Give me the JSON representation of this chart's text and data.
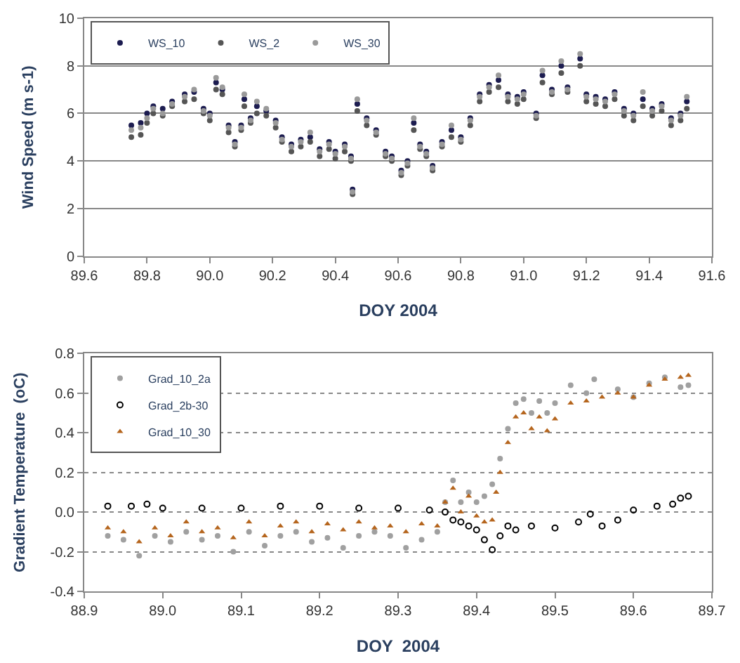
{
  "chart_data": [
    {
      "type": "scatter",
      "xlabel": "DOY 2004",
      "ylabel": "Wind Speed (m s-1)",
      "xlim": [
        89.6,
        91.6
      ],
      "xticks": [
        89.6,
        89.8,
        {
          "value": 90,
          "label": "90.0"
        },
        90.2,
        90.4,
        90.6,
        90.8,
        {
          "value": 91,
          "label": "91.0"
        },
        91.2,
        91.4,
        91.6
      ],
      "ylim": [
        0,
        10
      ],
      "yticks": [
        0,
        2,
        4,
        6,
        8,
        10
      ],
      "grid": "y",
      "legend": "top left",
      "marker": "circle",
      "x": [
        89.75,
        89.78,
        89.8,
        89.82,
        89.85,
        89.88,
        89.92,
        89.95,
        89.98,
        90.0,
        90.02,
        90.04,
        90.06,
        90.08,
        90.1,
        90.11,
        90.13,
        90.15,
        90.18,
        90.21,
        90.23,
        90.26,
        90.29,
        90.32,
        90.35,
        90.38,
        90.4,
        90.43,
        90.45,
        90.455,
        90.47,
        90.5,
        90.53,
        90.56,
        90.58,
        90.61,
        90.63,
        90.65,
        90.67,
        90.69,
        90.71,
        90.74,
        90.77,
        90.8,
        90.83,
        90.86,
        90.89,
        90.92,
        90.95,
        90.98,
        91.0,
        91.04,
        91.06,
        91.09,
        91.12,
        91.14,
        91.18,
        91.2,
        91.23,
        91.26,
        91.29,
        91.32,
        91.35,
        91.38,
        91.41,
        91.44,
        91.47,
        91.5,
        91.52
      ],
      "series": [
        {
          "name": "WS_10",
          "color": "#1c1c50",
          "values": [
            5.5,
            5.6,
            6.0,
            6.3,
            6.2,
            6.5,
            6.8,
            6.9,
            6.2,
            6.0,
            7.3,
            7.0,
            5.5,
            4.8,
            5.5,
            6.6,
            5.8,
            6.3,
            6.1,
            5.7,
            5.0,
            4.7,
            4.9,
            5.0,
            4.5,
            4.8,
            4.4,
            4.7,
            4.2,
            2.8,
            6.4,
            5.8,
            5.3,
            4.4,
            4.2,
            3.6,
            4.0,
            5.6,
            4.7,
            4.4,
            3.8,
            4.8,
            5.3,
            5.0,
            5.8,
            6.8,
            7.2,
            7.4,
            6.8,
            6.7,
            6.9,
            6.0,
            7.6,
            7.0,
            8.0,
            7.1,
            8.3,
            6.8,
            6.7,
            6.6,
            6.9,
            6.2,
            6.0,
            6.6,
            6.2,
            6.4,
            5.8,
            6.0,
            6.5
          ]
        },
        {
          "name": "WS_2",
          "color": "#555555",
          "values": [
            5.0,
            5.1,
            5.6,
            6.0,
            5.9,
            6.3,
            6.5,
            6.6,
            6.0,
            5.7,
            7.0,
            6.8,
            5.2,
            4.6,
            5.3,
            6.3,
            5.6,
            6.0,
            5.9,
            5.4,
            4.8,
            4.4,
            4.6,
            4.8,
            4.2,
            4.5,
            4.1,
            4.4,
            4.0,
            2.6,
            6.1,
            5.5,
            5.1,
            4.2,
            4.0,
            3.4,
            3.8,
            5.3,
            4.5,
            4.2,
            3.6,
            4.6,
            5.0,
            4.8,
            5.5,
            6.5,
            6.9,
            7.1,
            6.5,
            6.4,
            6.6,
            5.8,
            7.3,
            6.8,
            7.7,
            6.9,
            8.0,
            6.5,
            6.4,
            6.3,
            6.6,
            5.9,
            5.7,
            6.3,
            5.9,
            6.1,
            5.5,
            5.7,
            6.2
          ]
        },
        {
          "name": "WS_30",
          "color": "#9a9a9a",
          "values": [
            5.3,
            5.4,
            5.8,
            6.2,
            6.0,
            6.4,
            6.7,
            7.0,
            6.1,
            5.9,
            7.5,
            7.1,
            5.4,
            4.7,
            5.4,
            6.8,
            5.7,
            6.5,
            6.2,
            5.6,
            4.9,
            4.6,
            4.8,
            5.2,
            4.4,
            4.7,
            4.3,
            4.6,
            4.1,
            2.7,
            6.6,
            5.7,
            5.2,
            4.3,
            4.1,
            3.5,
            3.9,
            5.8,
            4.6,
            4.3,
            3.7,
            4.7,
            5.5,
            4.9,
            5.7,
            6.7,
            7.1,
            7.6,
            6.7,
            6.6,
            6.8,
            5.9,
            7.8,
            6.9,
            8.2,
            7.0,
            8.5,
            6.7,
            6.6,
            6.5,
            6.8,
            6.1,
            5.9,
            6.9,
            6.1,
            6.3,
            5.7,
            5.9,
            6.7
          ]
        }
      ]
    },
    {
      "type": "scatter",
      "xlabel": "DOY  2004",
      "ylabel": "Gradient Temperature  (oC)",
      "xlim": [
        88.9,
        89.7
      ],
      "xticks": [
        88.9,
        {
          "value": 89,
          "label": "89.0"
        },
        89.1,
        89.2,
        89.3,
        89.4,
        89.5,
        89.6,
        89.7
      ],
      "ylim": [
        -0.4,
        0.8
      ],
      "yticks": [
        -0.4,
        -0.2,
        {
          "value": 0,
          "label": "0.0"
        },
        0.2,
        0.4,
        0.6,
        0.8
      ],
      "grid": "y",
      "legend": "top left",
      "series": [
        {
          "name": "Grad_10_2a",
          "color": "#a0a0a0",
          "marker": "circle",
          "x": [
            88.93,
            88.95,
            88.97,
            88.99,
            89.01,
            89.03,
            89.05,
            89.07,
            89.09,
            89.11,
            89.13,
            89.15,
            89.17,
            89.19,
            89.21,
            89.23,
            89.25,
            89.27,
            89.29,
            89.31,
            89.33,
            89.35,
            89.36,
            89.37,
            89.38,
            89.39,
            89.4,
            89.41,
            89.42,
            89.43,
            89.44,
            89.45,
            89.46,
            89.47,
            89.48,
            89.49,
            89.5,
            89.52,
            89.54,
            89.55,
            89.58,
            89.6,
            89.62,
            89.64,
            89.66,
            89.67
          ],
          "values": [
            -0.12,
            -0.14,
            -0.22,
            -0.12,
            -0.15,
            -0.1,
            -0.14,
            -0.12,
            -0.2,
            -0.1,
            -0.17,
            -0.12,
            -0.1,
            -0.15,
            -0.13,
            -0.18,
            -0.12,
            -0.1,
            -0.12,
            -0.18,
            -0.14,
            -0.1,
            0.05,
            0.16,
            0.05,
            0.1,
            0.05,
            0.08,
            0.14,
            0.27,
            0.42,
            0.55,
            0.57,
            0.5,
            0.56,
            0.5,
            0.55,
            0.64,
            0.6,
            0.67,
            0.62,
            0.58,
            0.65,
            0.68,
            0.63,
            0.64
          ]
        },
        {
          "name": "Grad_2b-30",
          "color": "#000000",
          "marker": "circle-open",
          "x": [
            88.93,
            88.96,
            88.98,
            89.0,
            89.05,
            89.1,
            89.15,
            89.2,
            89.25,
            89.3,
            89.34,
            89.36,
            89.37,
            89.38,
            89.39,
            89.4,
            89.41,
            89.42,
            89.43,
            89.44,
            89.45,
            89.47,
            89.5,
            89.53,
            89.545,
            89.56,
            89.58,
            89.6,
            89.63,
            89.65,
            89.66,
            89.67
          ],
          "values": [
            0.03,
            0.03,
            0.04,
            0.02,
            0.02,
            0.02,
            0.03,
            0.03,
            0.02,
            0.02,
            0.01,
            0.0,
            -0.04,
            -0.05,
            -0.07,
            -0.09,
            -0.14,
            -0.19,
            -0.12,
            -0.07,
            -0.09,
            -0.07,
            -0.08,
            -0.05,
            -0.01,
            -0.07,
            -0.04,
            0.01,
            0.03,
            0.04,
            0.07,
            0.08
          ]
        },
        {
          "name": "Grad_10_30",
          "color": "#b5651d",
          "marker": "triangle",
          "x": [
            88.93,
            88.95,
            88.97,
            88.99,
            89.01,
            89.03,
            89.05,
            89.07,
            89.09,
            89.11,
            89.13,
            89.15,
            89.17,
            89.19,
            89.21,
            89.23,
            89.25,
            89.27,
            89.29,
            89.31,
            89.33,
            89.35,
            89.36,
            89.37,
            89.38,
            89.39,
            89.4,
            89.41,
            89.42,
            89.425,
            89.43,
            89.44,
            89.45,
            89.46,
            89.47,
            89.48,
            89.49,
            89.5,
            89.52,
            89.54,
            89.56,
            89.58,
            89.6,
            89.62,
            89.64,
            89.66,
            89.67
          ],
          "values": [
            -0.08,
            -0.1,
            -0.15,
            -0.08,
            -0.12,
            -0.05,
            -0.1,
            -0.08,
            -0.13,
            -0.05,
            -0.12,
            -0.07,
            -0.05,
            -0.1,
            -0.06,
            -0.09,
            -0.05,
            -0.08,
            -0.07,
            -0.1,
            -0.06,
            -0.07,
            0.05,
            0.12,
            0.0,
            0.08,
            -0.02,
            -0.05,
            -0.04,
            0.1,
            0.2,
            0.35,
            0.48,
            0.5,
            0.42,
            0.48,
            0.41,
            0.47,
            0.55,
            0.56,
            0.58,
            0.6,
            0.58,
            0.64,
            0.67,
            0.68,
            0.69
          ]
        }
      ]
    }
  ]
}
